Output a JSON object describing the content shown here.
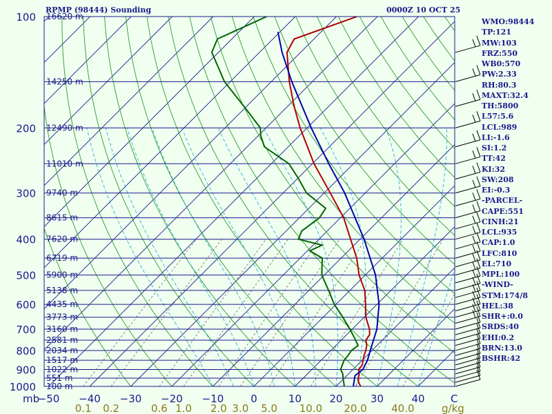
{
  "header": {
    "station": "RPMP (98444) Sounding",
    "time": "0000Z 10 OCT 25"
  },
  "chart_data": {
    "type": "line",
    "title": "RPMP (98444) Sounding",
    "subtitle": "0000Z 10 OCT 25",
    "x_axis": {
      "temperature_ticks": [
        -50,
        -40,
        -30,
        -20,
        -10,
        0,
        10,
        20,
        30,
        40
      ],
      "temperature_tick_labels": [
        "−50",
        "−40",
        "−30",
        "−20",
        "−10",
        "0",
        "10",
        "20",
        "30",
        "40"
      ],
      "corner_label_left": "mb",
      "corner_label_right": "C",
      "mixing_ratio_ticks": [
        0.1,
        0.2,
        0.6,
        1.0,
        2.0,
        3.0,
        5.0,
        10.0,
        20.0,
        40.0
      ],
      "mixing_ratio_tick_labels": [
        "0.1",
        "0.2",
        "0.6",
        "1.0",
        "2.0",
        "3.0",
        "5.0",
        "10.0",
        "20.0",
        "40.0"
      ],
      "mixing_ratio_unit": "g/kg"
    },
    "y_axis": {
      "scale": "log",
      "range_mb": [
        1000,
        100
      ],
      "pressure_labels": [
        1000,
        900,
        800,
        700,
        600,
        500,
        400,
        300,
        200,
        100
      ]
    },
    "height_levels": [
      {
        "mb": 100,
        "label": "16620 m"
      },
      {
        "mb": 150,
        "label": "14250 m"
      },
      {
        "mb": 200,
        "label": "12490 m"
      },
      {
        "mb": 250,
        "label": "11010 m"
      },
      {
        "mb": 300,
        "label": "9740 m"
      },
      {
        "mb": 350,
        "label": "8615 m"
      },
      {
        "mb": 400,
        "label": "7620 m"
      },
      {
        "mb": 450,
        "label": "6719 m"
      },
      {
        "mb": 500,
        "label": "5900 m"
      },
      {
        "mb": 550,
        "label": "5138 m"
      },
      {
        "mb": 600,
        "label": "4435 m"
      },
      {
        "mb": 650,
        "label": "3773 m"
      },
      {
        "mb": 700,
        "label": "3160 m"
      },
      {
        "mb": 750,
        "label": "2581 m"
      },
      {
        "mb": 800,
        "label": "2034 m"
      },
      {
        "mb": 850,
        "label": "1517 m"
      },
      {
        "mb": 900,
        "label": "1022 m"
      },
      {
        "mb": 950,
        "label": "551 m"
      },
      {
        "mb": 1000,
        "label": "100 m"
      }
    ],
    "series": [
      {
        "key": "temperature",
        "color": "#b00000",
        "points": [
          {
            "mb": 1000,
            "t": 26.0
          },
          {
            "mb": 975,
            "t": 24.5
          },
          {
            "mb": 950,
            "t": 23.4
          },
          {
            "mb": 925,
            "t": 22.6
          },
          {
            "mb": 900,
            "t": 21.4
          },
          {
            "mb": 875,
            "t": 21.2
          },
          {
            "mb": 850,
            "t": 20.2
          },
          {
            "mb": 825,
            "t": 19.3
          },
          {
            "mb": 800,
            "t": 18.5
          },
          {
            "mb": 775,
            "t": 17.5
          },
          {
            "mb": 750,
            "t": 16.0
          },
          {
            "mb": 725,
            "t": 15.6
          },
          {
            "mb": 700,
            "t": 14.2
          },
          {
            "mb": 650,
            "t": 10.4
          },
          {
            "mb": 600,
            "t": 7.2
          },
          {
            "mb": 550,
            "t": 3.6
          },
          {
            "mb": 500,
            "t": -1.5
          },
          {
            "mb": 450,
            "t": -6.2
          },
          {
            "mb": 400,
            "t": -12.3
          },
          {
            "mb": 350,
            "t": -19.2
          },
          {
            "mb": 300,
            "t": -28.5
          },
          {
            "mb": 250,
            "t": -39.6
          },
          {
            "mb": 200,
            "t": -51.7
          },
          {
            "mb": 175,
            "t": -58.4
          },
          {
            "mb": 150,
            "t": -65.6
          },
          {
            "mb": 125,
            "t": -73.3
          },
          {
            "mb": 115,
            "t": -74.8
          },
          {
            "mb": 100,
            "t": -65.0
          }
        ]
      },
      {
        "key": "dewpoint",
        "color": "#006400",
        "points": [
          {
            "mb": 1000,
            "t": 22.0
          },
          {
            "mb": 975,
            "t": 20.9
          },
          {
            "mb": 950,
            "t": 19.7
          },
          {
            "mb": 925,
            "t": 18.6
          },
          {
            "mb": 900,
            "t": 17.0
          },
          {
            "mb": 875,
            "t": 16.3
          },
          {
            "mb": 850,
            "t": 15.6
          },
          {
            "mb": 825,
            "t": 15.4
          },
          {
            "mb": 800,
            "t": 15.0
          },
          {
            "mb": 775,
            "t": 15.4
          },
          {
            "mb": 750,
            "t": 13.5
          },
          {
            "mb": 725,
            "t": 11.5
          },
          {
            "mb": 700,
            "t": 9.4
          },
          {
            "mb": 650,
            "t": 4.8
          },
          {
            "mb": 600,
            "t": -0.4
          },
          {
            "mb": 550,
            "t": -5.2
          },
          {
            "mb": 500,
            "t": -10.6
          },
          {
            "mb": 450,
            "t": -14.6
          },
          {
            "mb": 430,
            "t": -19.4
          },
          {
            "mb": 415,
            "t": -17.8
          },
          {
            "mb": 400,
            "t": -25.0
          },
          {
            "mb": 380,
            "t": -26.2
          },
          {
            "mb": 350,
            "t": -25.1
          },
          {
            "mb": 330,
            "t": -25.9
          },
          {
            "mb": 300,
            "t": -34.3
          },
          {
            "mb": 275,
            "t": -39.6
          },
          {
            "mb": 250,
            "t": -45.7
          },
          {
            "mb": 225,
            "t": -55.8
          },
          {
            "mb": 210,
            "t": -59.4
          },
          {
            "mb": 200,
            "t": -61.4
          },
          {
            "mb": 175,
            "t": -70.6
          },
          {
            "mb": 150,
            "t": -81.4
          },
          {
            "mb": 125,
            "t": -91.6
          },
          {
            "mb": 115,
            "t": -93.5
          },
          {
            "mb": 100,
            "t": -87.0
          }
        ]
      },
      {
        "key": "parcel",
        "color": "#0000aa",
        "points": [
          {
            "mb": 1000,
            "t": 24.2
          },
          {
            "mb": 935,
            "t": 22.0
          },
          {
            "mb": 900,
            "t": 22.4
          },
          {
            "mb": 850,
            "t": 21.3
          },
          {
            "mb": 800,
            "t": 19.6
          },
          {
            "mb": 700,
            "t": 16.0
          },
          {
            "mb": 600,
            "t": 10.5
          },
          {
            "mb": 500,
            "t": 2.5
          },
          {
            "mb": 400,
            "t": -9.0
          },
          {
            "mb": 300,
            "t": -25.0
          },
          {
            "mb": 250,
            "t": -36.0
          },
          {
            "mb": 200,
            "t": -49.0
          },
          {
            "mb": 150,
            "t": -65.0
          },
          {
            "mb": 125,
            "t": -74.5
          },
          {
            "mb": 110,
            "t": -80.5
          }
        ]
      }
    ],
    "grid": {
      "isobars": true,
      "isotherms": true,
      "dry_adiabats": true,
      "moist_adiabats": true,
      "mixing_ratio_lines": true
    }
  },
  "indices": [
    "WMO:98444",
    "TP:121",
    "MW:103",
    "FRZ:550",
    "WB0:570",
    "PW:2.33",
    "RH:80.3",
    "MAXT:32.4",
    "TH:5800",
    "L57:5.6",
    "LCL:989",
    "LI:-1.6",
    "SI:1.2",
    "TT:42",
    "KI:32",
    "SW:208",
    "EI:-0.3",
    "-PARCEL-",
    "CAPE:551",
    "CINH:21",
    "LCL:935",
    "CAP:1.0",
    "LFC:810",
    "EL:710",
    "MPL:100",
    "-WIND-",
    "STM:174/8",
    "HEL:38",
    "SHR+:0.0",
    "SRDS:40",
    "EHI:0.2",
    "BRN:13.0",
    "BSHR:42"
  ],
  "colors": {
    "background": "#f0fff0",
    "isobar": "#1a1a8c",
    "isotherm": "#1a1a8c",
    "dry_adiabat": "#2a9a2a",
    "moist_adiabat": "#33aadd",
    "mixing_ratio": "#666666",
    "wind_barb": "#000000",
    "tick_text_pressure": "#1a1a8c",
    "tick_text_temperature": "#1a1a8c",
    "tick_text_mixing": "#8c7a1a",
    "height_text": "#1a1a8c"
  }
}
